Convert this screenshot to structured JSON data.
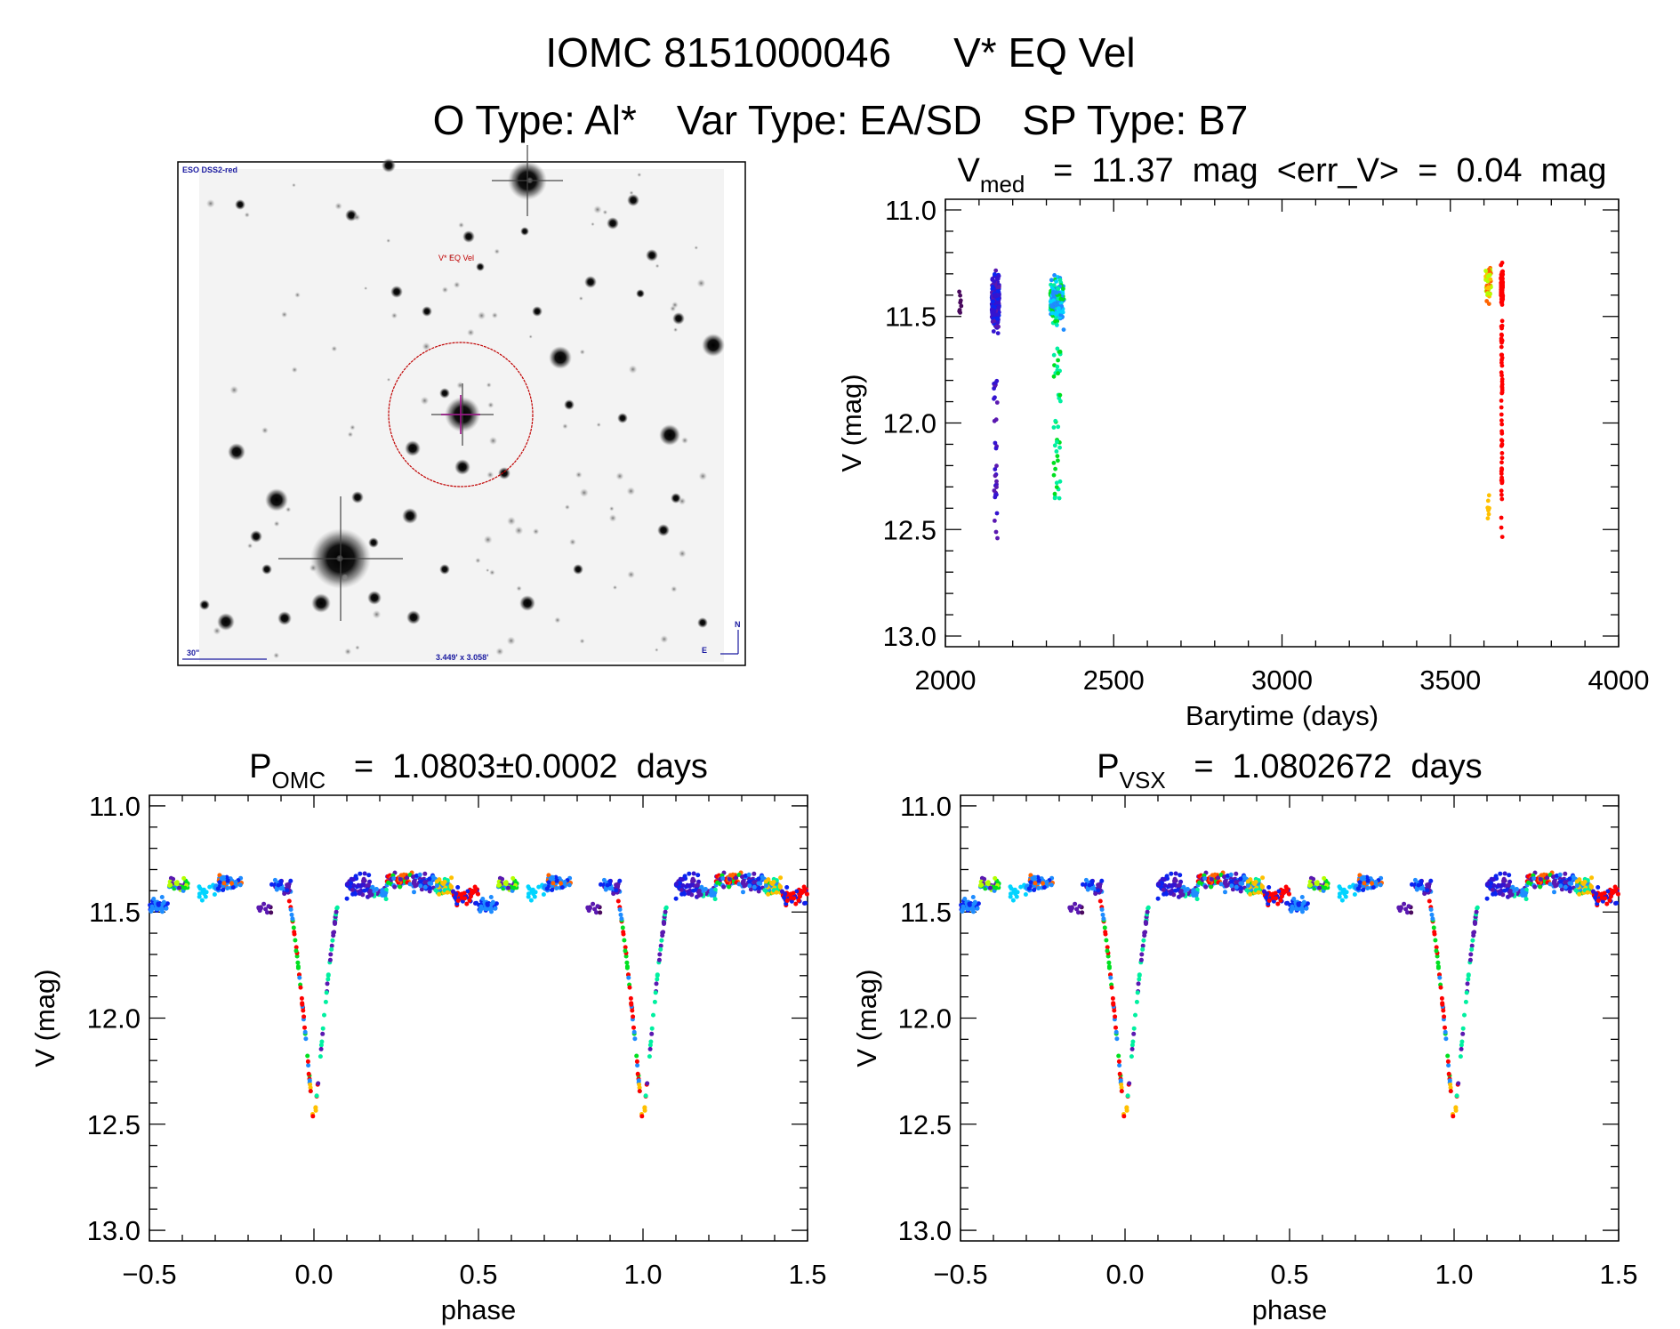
{
  "header": {
    "line1_id": "IOMC 8151000046",
    "line1_name": "V* EQ Vel",
    "otype": "O Type: Al*",
    "vartype": "Var Type: EA/SD",
    "sptype": "SP Type: B7"
  },
  "finder_image": {
    "survey": "ESO DSS2-red",
    "target_label": "V* EQ Vel",
    "scale_bar": "30\"",
    "field_size": "3.449' x 3.058'",
    "north": "N",
    "east": "E",
    "circle_color": "#c00000",
    "label_color": "#1a1aa0"
  },
  "palette": {
    "purple_dark": "#4a0a5e",
    "purple": "#5a18b0",
    "indigo": "#3414d0",
    "blue": "#0a24f0",
    "lightblue": "#1e8cff",
    "cyan": "#00d4ff",
    "cyangreen": "#00f0a0",
    "green": "#00e020",
    "yellowgreen": "#b4ff00",
    "yellow": "#ffc000",
    "orange": "#ff6400",
    "red": "#ff0000"
  },
  "chart_data": [
    {
      "id": "lightcurve",
      "type": "scatter",
      "title_main": "V",
      "title_sub": "med",
      "title_rest": " = 11.37 mag <err_V> = 0.04 mag",
      "xlabel": "Barytime (days)",
      "ylabel": "V (mag)",
      "xlim": [
        2000,
        4000
      ],
      "ylim": [
        13.05,
        10.95
      ],
      "xticks": [
        "2000",
        "2500",
        "3000",
        "3500",
        "4000"
      ],
      "xtick_values": [
        2000,
        2500,
        3000,
        3500,
        4000
      ],
      "yticks": [
        "11.0",
        "11.5",
        "12.0",
        "12.5",
        "13.0"
      ],
      "ytick_values": [
        11.0,
        11.5,
        12.0,
        12.5,
        13.0
      ],
      "groups": [
        {
          "t": [
            2040,
            2048
          ],
          "mag": [
            11.33,
            11.55
          ],
          "n": 8,
          "colors": [
            "purple_dark"
          ]
        },
        {
          "t": [
            2138,
            2160
          ],
          "mag": [
            11.27,
            11.6
          ],
          "n": 240,
          "colors": [
            "purple",
            "indigo",
            "blue",
            "indigo"
          ],
          "tail": {
            "mag": [
              11.6,
              12.55
            ],
            "n": 32,
            "colors": [
              "purple",
              "indigo"
            ]
          }
        },
        {
          "t": [
            2312,
            2352
          ],
          "mag": [
            11.27,
            11.57
          ],
          "n": 170,
          "colors": [
            "lightblue",
            "cyan",
            "cyangreen",
            "green",
            "lightblue"
          ],
          "tail": {
            "mag": [
              11.65,
              12.4
            ],
            "n": 42,
            "colors": [
              "cyangreen",
              "green"
            ]
          }
        },
        {
          "t": [
            3605,
            3622
          ],
          "mag": [
            11.2,
            11.48
          ],
          "n": 45,
          "colors": [
            "yellow",
            "yellowgreen",
            "orange"
          ],
          "tail": {
            "mag": [
              12.28,
              12.45
            ],
            "n": 9,
            "colors": [
              "yellow"
            ]
          }
        },
        {
          "t": [
            3650,
            3656
          ],
          "mag": [
            11.23,
            11.5
          ],
          "n": 90,
          "colors": [
            "red"
          ],
          "tail": {
            "mag": [
              11.5,
              12.55
            ],
            "n": 60,
            "colors": [
              "red"
            ]
          }
        }
      ]
    },
    {
      "id": "phase-omc",
      "type": "scatter",
      "title_main": "P",
      "title_sub": "OMC",
      "title_rest": " = 1.0803±0.0002 days",
      "xlabel": "phase",
      "ylabel": "V (mag)",
      "xlim": [
        -0.5,
        1.5
      ],
      "ylim": [
        13.05,
        10.95
      ],
      "xticks": [
        "−0.5",
        "0.0",
        "0.5",
        "1.0",
        "1.5"
      ],
      "xtick_values": [
        -0.5,
        0.0,
        0.5,
        1.0,
        1.5
      ],
      "yticks": [
        "11.0",
        "11.5",
        "12.0",
        "12.5",
        "13.0"
      ],
      "ytick_values": [
        11.0,
        11.5,
        12.0,
        12.5,
        13.0
      ],
      "seed": 11
    },
    {
      "id": "phase-vsx",
      "type": "scatter",
      "title_main": "P",
      "title_sub": "VSX",
      "title_rest": " = 1.0802672 days",
      "xlabel": "phase",
      "ylabel": "V (mag)",
      "xlim": [
        -0.5,
        1.5
      ],
      "ylim": [
        13.05,
        10.95
      ],
      "xticks": [
        "−0.5",
        "0.0",
        "0.5",
        "1.0",
        "1.5"
      ],
      "xtick_values": [
        -0.5,
        0.0,
        0.5,
        1.0,
        1.5
      ],
      "yticks": [
        "11.0",
        "11.5",
        "12.0",
        "12.5",
        "13.0"
      ],
      "ytick_values": [
        11.0,
        11.5,
        12.0,
        12.5,
        13.0
      ],
      "seed": 11
    }
  ],
  "phase_model": {
    "primary_min_phase": 0.0,
    "primary_min_mag": 12.52,
    "eclipse_halfwidth": 0.075,
    "segments": [
      {
        "phase": [
          0.5,
          0.56
        ],
        "mag": [
          11.42,
          11.52
        ],
        "n": 40,
        "colors": [
          "lightblue",
          "blue",
          "lightblue"
        ]
      },
      {
        "phase": [
          0.56,
          0.62
        ],
        "mag": [
          11.33,
          11.42
        ],
        "n": 45,
        "colors": [
          "yellowgreen",
          "green",
          "lightblue",
          "purple"
        ]
      },
      {
        "phase": [
          0.65,
          0.7
        ],
        "mag": [
          11.36,
          11.46
        ],
        "n": 14,
        "colors": [
          "cyan"
        ]
      },
      {
        "phase": [
          0.7,
          0.78
        ],
        "mag": [
          11.31,
          11.42
        ],
        "n": 60,
        "colors": [
          "lightblue",
          "blue",
          "orange",
          "lightblue"
        ]
      },
      {
        "phase": [
          0.83,
          0.87
        ],
        "mag": [
          11.45,
          11.52
        ],
        "n": 12,
        "colors": [
          "purple_dark",
          "purple"
        ]
      },
      {
        "phase": [
          0.87,
          0.93
        ],
        "mag": [
          11.33,
          11.43
        ],
        "n": 35,
        "colors": [
          "blue",
          "purple",
          "lightblue"
        ]
      },
      {
        "phase": [
          0.1,
          0.17
        ],
        "mag": [
          11.3,
          11.45
        ],
        "n": 60,
        "colors": [
          "purple",
          "blue",
          "indigo"
        ]
      },
      {
        "phase": [
          0.17,
          0.22
        ],
        "mag": [
          11.36,
          11.45
        ],
        "n": 30,
        "colors": [
          "cyangreen",
          "lightblue",
          "purple"
        ]
      },
      {
        "phase": [
          0.22,
          0.3
        ],
        "mag": [
          11.3,
          11.4
        ],
        "n": 60,
        "colors": [
          "green",
          "red",
          "orange",
          "purple",
          "lightblue"
        ]
      },
      {
        "phase": [
          0.3,
          0.37
        ],
        "mag": [
          11.3,
          11.42
        ],
        "n": 55,
        "colors": [
          "blue",
          "lightblue",
          "purple"
        ]
      },
      {
        "phase": [
          0.37,
          0.42
        ],
        "mag": [
          11.32,
          11.44
        ],
        "n": 50,
        "colors": [
          "cyangreen",
          "yellow",
          "lightblue",
          "green"
        ]
      },
      {
        "phase": [
          0.42,
          0.5
        ],
        "mag": [
          11.36,
          11.48
        ],
        "n": 50,
        "colors": [
          "red",
          "blue",
          "red",
          "indigo"
        ]
      }
    ]
  }
}
